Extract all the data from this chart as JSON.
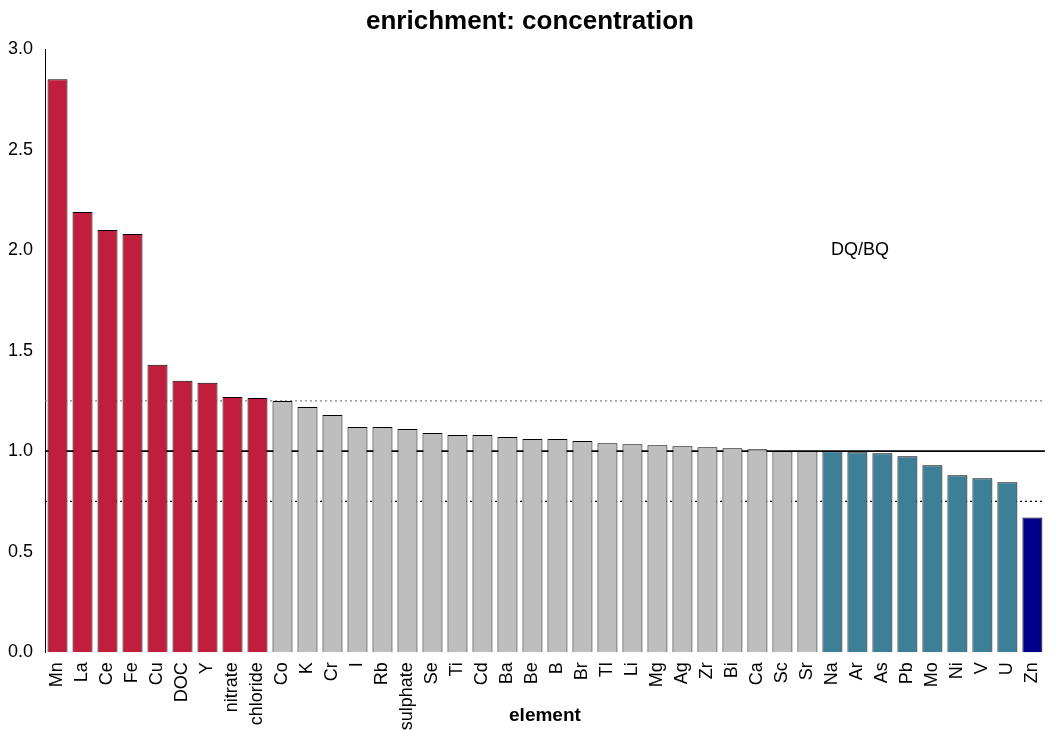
{
  "chart_data": {
    "type": "bar",
    "title": "enrichment: concentration",
    "xlabel": "element",
    "categories": [
      "Mn",
      "La",
      "Ce",
      "Fe",
      "Cu",
      "DOC",
      "Y",
      "nitrate",
      "chloride",
      "Co",
      "K",
      "Cr",
      "I",
      "Rb",
      "sulphate",
      "Se",
      "Ti",
      "Cd",
      "Ba",
      "Be",
      "B",
      "Br",
      "Tl",
      "Li",
      "Mg",
      "Ag",
      "Zr",
      "Bi",
      "Ca",
      "Sc",
      "Sr",
      "Na",
      "Ar",
      "As",
      "Pb",
      "Mo",
      "Ni",
      "V",
      "U",
      "Zn"
    ],
    "values": [
      2.85,
      2.19,
      2.1,
      2.08,
      1.43,
      1.35,
      1.34,
      1.27,
      1.265,
      1.25,
      1.22,
      1.18,
      1.12,
      1.12,
      1.11,
      1.09,
      1.08,
      1.08,
      1.07,
      1.06,
      1.06,
      1.05,
      1.04,
      1.035,
      1.03,
      1.025,
      1.02,
      1.015,
      1.01,
      1.0,
      1.0,
      1.0,
      0.995,
      0.99,
      0.975,
      0.93,
      0.88,
      0.865,
      0.845,
      0.67
    ],
    "colors": [
      "#c01e3c",
      "#c01e3c",
      "#c01e3c",
      "#c01e3c",
      "#c01e3c",
      "#c01e3c",
      "#c01e3c",
      "#c01e3c",
      "#c01e3c",
      "#bebebe",
      "#bebebe",
      "#bebebe",
      "#bebebe",
      "#bebebe",
      "#bebebe",
      "#bebebe",
      "#bebebe",
      "#bebebe",
      "#bebebe",
      "#bebebe",
      "#bebebe",
      "#bebebe",
      "#bebebe",
      "#bebebe",
      "#bebebe",
      "#bebebe",
      "#bebebe",
      "#bebebe",
      "#bebebe",
      "#bebebe",
      "#bebebe",
      "#3e7f98",
      "#3e7f98",
      "#3e7f98",
      "#3e7f98",
      "#3e7f98",
      "#3e7f98",
      "#3e7f98",
      "#3e7f98",
      "#00008b"
    ],
    "ylim": [
      0,
      3
    ],
    "yticks": [
      {
        "value": 0,
        "label": "0.0"
      },
      {
        "value": 0.5,
        "label": "0.5"
      },
      {
        "value": 1,
        "label": "1.0"
      },
      {
        "value": 1.5,
        "label": "1.5"
      },
      {
        "value": 2,
        "label": "2.0"
      },
      {
        "value": 2.5,
        "label": "2.5"
      },
      {
        "value": 3,
        "label": "3.0"
      }
    ],
    "ref_lines": [
      {
        "axis": "y",
        "value": 1,
        "color": "#000000",
        "line_style": "solid"
      },
      {
        "axis": "y",
        "value": 1.25,
        "color": "#808080",
        "line_style": "dotted"
      },
      {
        "axis": "y",
        "value": 0.75,
        "color": "#000000",
        "line_style": "dotted"
      }
    ],
    "annotations": [
      "DQ/BQ"
    ]
  }
}
